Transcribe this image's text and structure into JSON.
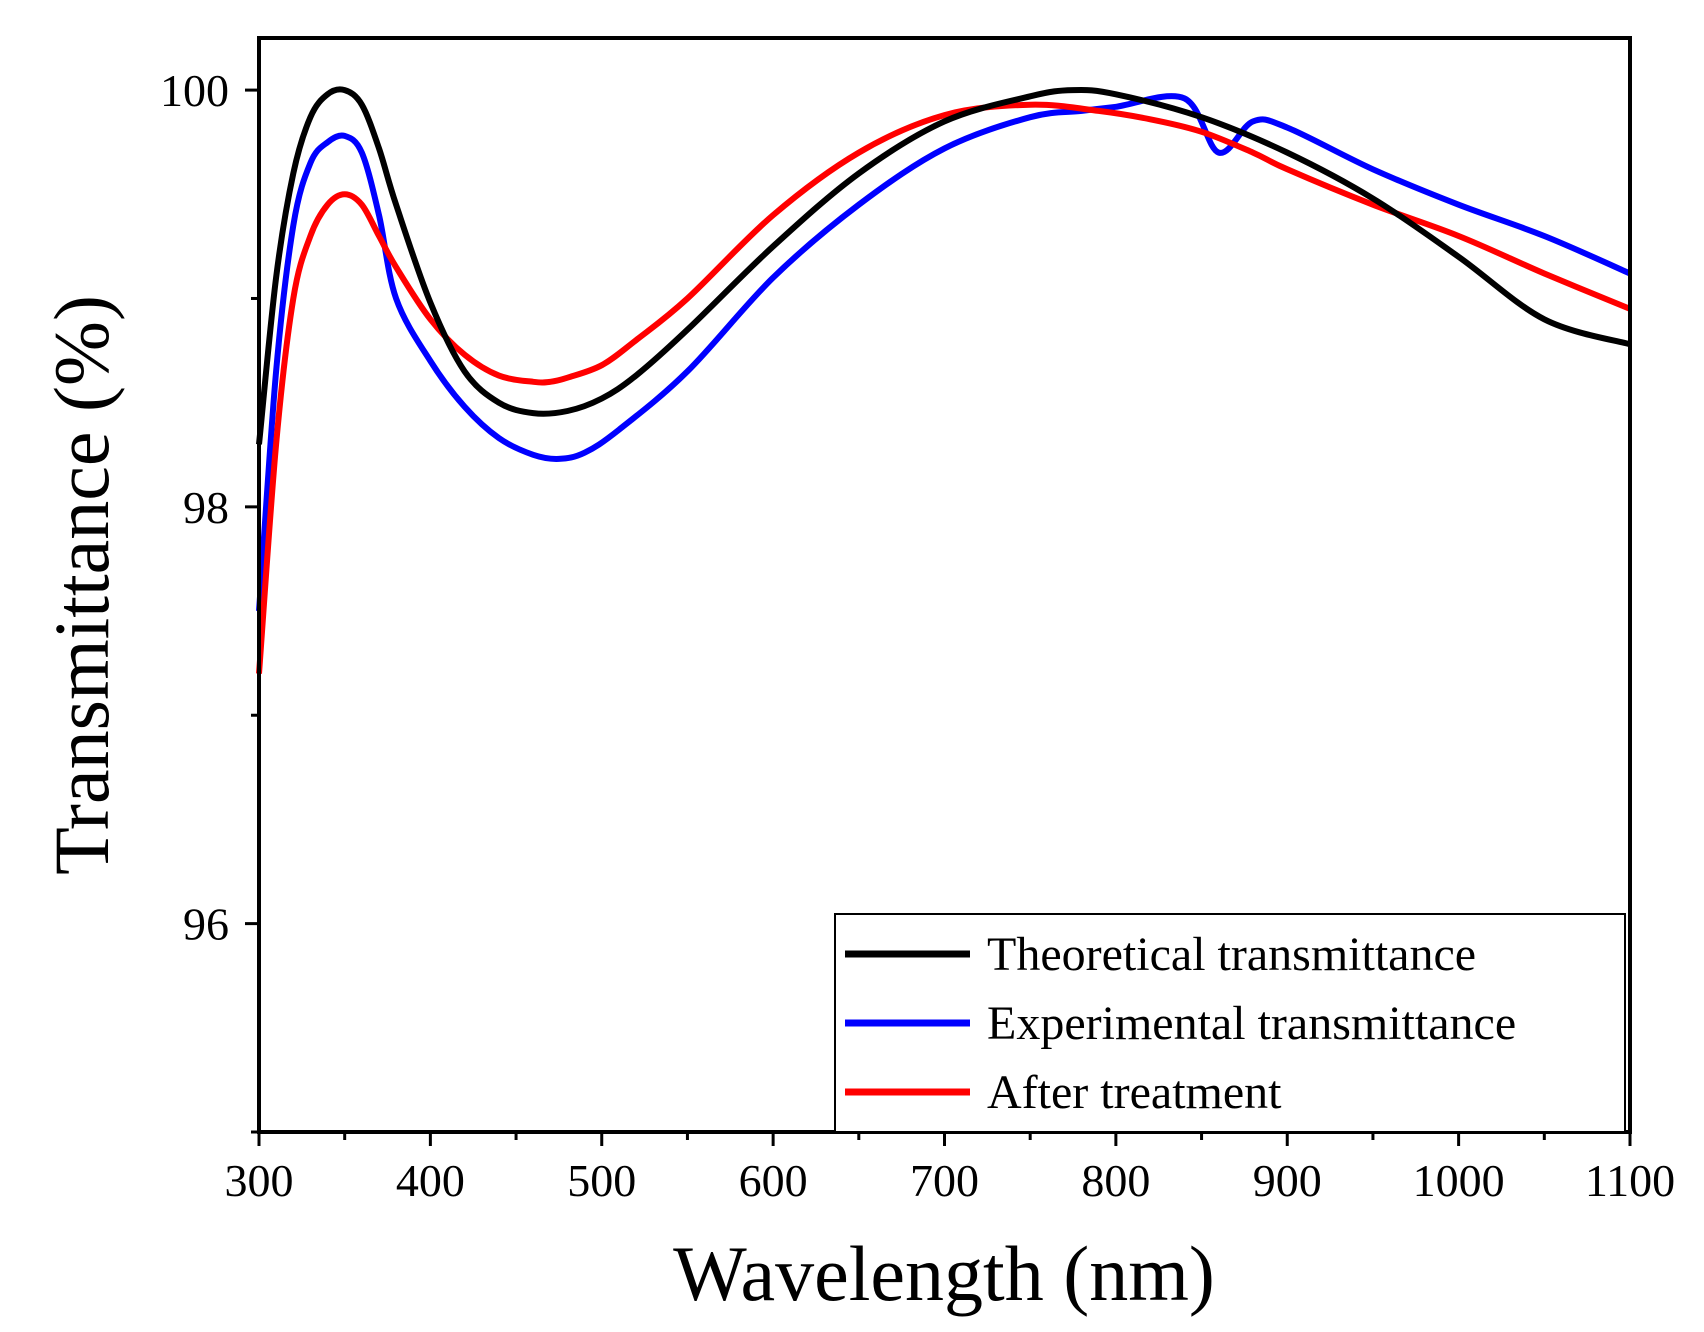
{
  "chart_data": {
    "type": "line",
    "xlabel": "Wavelength (nm)",
    "ylabel": "Transmittance (%)",
    "xlim": [
      300,
      1100
    ],
    "ylim": [
      95.0,
      100.25
    ],
    "x_ticks": [
      "300",
      "400",
      "500",
      "600",
      "700",
      "800",
      "900",
      "1000",
      "1100"
    ],
    "y_ticks": [
      "96",
      "98",
      "100"
    ],
    "legend_position": "bottom-right",
    "series": [
      {
        "name": "Theoretical transmittance",
        "color": "#000000",
        "x": [
          300,
          310,
          320,
          330,
          340,
          350,
          360,
          370,
          380,
          400,
          420,
          440,
          460,
          480,
          500,
          520,
          550,
          600,
          650,
          700,
          750,
          775,
          800,
          850,
          900,
          950,
          1000,
          1050,
          1100
        ],
        "y": [
          98.3,
          99.1,
          99.6,
          99.87,
          99.98,
          100.0,
          99.93,
          99.72,
          99.45,
          98.98,
          98.65,
          98.5,
          98.45,
          98.46,
          98.52,
          98.63,
          98.85,
          99.25,
          99.6,
          99.85,
          99.97,
          100.0,
          99.98,
          99.87,
          99.7,
          99.48,
          99.2,
          98.9,
          98.78
        ]
      },
      {
        "name": "Experimental transmittance",
        "color": "#0000ff",
        "x": [
          300,
          310,
          320,
          330,
          340,
          350,
          360,
          370,
          380,
          400,
          420,
          440,
          460,
          475,
          490,
          510,
          550,
          600,
          650,
          700,
          750,
          780,
          800,
          840,
          860,
          880,
          900,
          950,
          1000,
          1050,
          1100
        ],
        "y": [
          97.5,
          98.65,
          99.35,
          99.65,
          99.75,
          99.78,
          99.7,
          99.4,
          99.0,
          98.7,
          98.48,
          98.33,
          98.25,
          98.23,
          98.26,
          98.37,
          98.65,
          99.1,
          99.45,
          99.72,
          99.87,
          99.9,
          99.92,
          99.96,
          99.7,
          99.85,
          99.82,
          99.62,
          99.45,
          99.3,
          99.12
        ]
      },
      {
        "name": "After treatment",
        "color": "#ff0000",
        "x": [
          300,
          310,
          320,
          330,
          340,
          350,
          360,
          370,
          380,
          400,
          420,
          440,
          460,
          470,
          480,
          500,
          520,
          550,
          600,
          650,
          700,
          750,
          790,
          820,
          850,
          880,
          900,
          950,
          1000,
          1050,
          1100
        ],
        "y": [
          97.2,
          98.3,
          99.0,
          99.3,
          99.45,
          99.5,
          99.45,
          99.3,
          99.15,
          98.9,
          98.73,
          98.63,
          98.6,
          98.6,
          98.62,
          98.68,
          98.8,
          99.0,
          99.4,
          99.7,
          99.88,
          99.93,
          99.9,
          99.86,
          99.8,
          99.7,
          99.62,
          99.45,
          99.3,
          99.12,
          98.95
        ]
      }
    ]
  }
}
